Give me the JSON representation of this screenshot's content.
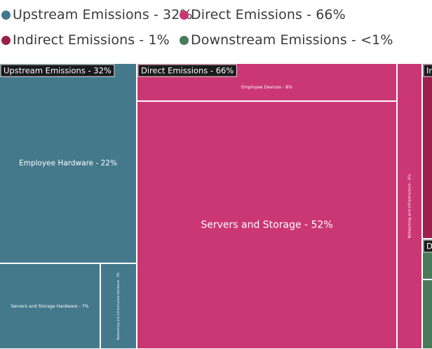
{
  "legend": [
    {
      "label": "Upstream Emissions - 32%",
      "color": "#44798c"
    },
    {
      "label": "Direct Emissions - 66%",
      "color": "#cb3774"
    },
    {
      "label": "Indirect Emissions - 1%",
      "color": "#9a2149"
    },
    {
      "label": "Downstream Emissions - <1%",
      "color": "#4a7a59"
    }
  ],
  "chart_data": {
    "type": "treemap",
    "title": "",
    "groups": [
      {
        "name": "Upstream Emissions",
        "label": "Upstream Emissions - 32%",
        "value": 32,
        "color": "#44798c",
        "children": [
          {
            "label": "Employee Hardware - 22%",
            "value": 22
          },
          {
            "label": "Servers and Storage Hardware - 7%",
            "value": 7
          },
          {
            "label": "Networking and Infrastructure Hardware - 3%",
            "value": 3
          }
        ]
      },
      {
        "name": "Direct Emissions",
        "label": "Direct Emissions - 66%",
        "value": 66,
        "color": "#cb3774",
        "children": [
          {
            "label": "Employee Devices - 8%",
            "value": 8
          },
          {
            "label": "Servers and Storage - 52%",
            "value": 52
          },
          {
            "label": "Networking and Infrastructure - 6%",
            "value": 6
          }
        ]
      },
      {
        "name": "Indirect Emissions",
        "label": "Indirect Emissions - 1%",
        "value": 1,
        "color": "#9a2149",
        "children": [
          {
            "label": "",
            "value": 1
          }
        ]
      },
      {
        "name": "Downstream Emissions",
        "label": "Downstream Emissions - <1%",
        "value": 0.5,
        "color": "#4a7a59",
        "children": [
          {
            "label": "",
            "value": 0.2
          },
          {
            "label": "",
            "value": 0.3
          }
        ]
      }
    ]
  }
}
